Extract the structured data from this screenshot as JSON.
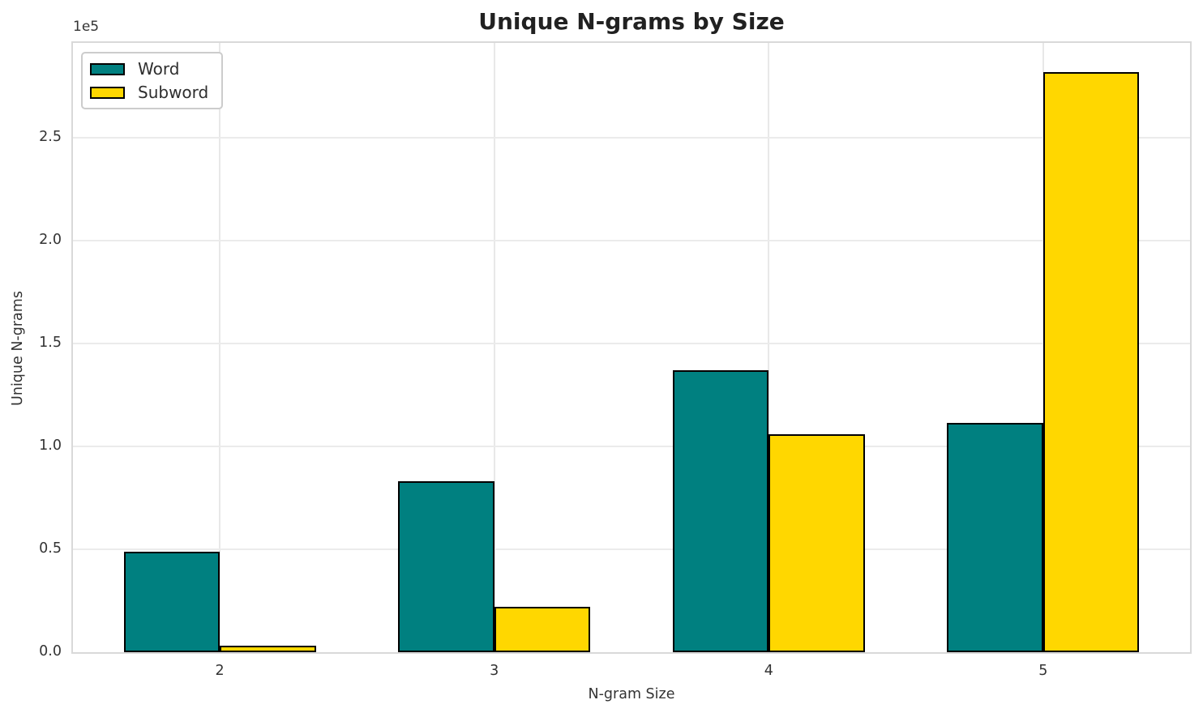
{
  "title": "Unique N-grams by Size",
  "axes": {
    "x_label": "N-gram Size",
    "y_label": "Unique N-grams",
    "offset_text": "1e5",
    "x_tick_labels": [
      "2",
      "3",
      "4",
      "5"
    ],
    "y_tick_labels": [
      "0.0",
      "0.5",
      "1.0",
      "1.5",
      "2.0",
      "2.5"
    ]
  },
  "legend": {
    "items": [
      {
        "label": "Word",
        "color": "#008080"
      },
      {
        "label": "Subword",
        "color": "#FFD700"
      }
    ]
  },
  "colors": {
    "word_bar": "#008080",
    "subword_bar": "#FFD700",
    "bar_edge": "#000000",
    "gridline": "#e8e8e8",
    "spine": "#d9d9d9"
  },
  "chart_data": {
    "type": "bar",
    "title": "Unique N-grams by Size",
    "xlabel": "N-gram Size",
    "ylabel": "Unique N-grams",
    "categories": [
      2,
      3,
      4,
      5
    ],
    "series": [
      {
        "name": "Word",
        "color": "#008080",
        "values": [
          49000,
          83000,
          137000,
          111500
        ]
      },
      {
        "name": "Subword",
        "color": "#FFD700",
        "values": [
          3000,
          22000,
          106000,
          282000
        ]
      }
    ],
    "xlim": [
      1.465,
      5.535
    ],
    "ylim": [
      0,
      296000
    ],
    "yticks": [
      0,
      50000,
      100000,
      150000,
      200000,
      250000
    ],
    "y_scale_factor": 100000,
    "bar_width_data_units": 0.35,
    "grid": true,
    "legend_position": "upper left"
  }
}
